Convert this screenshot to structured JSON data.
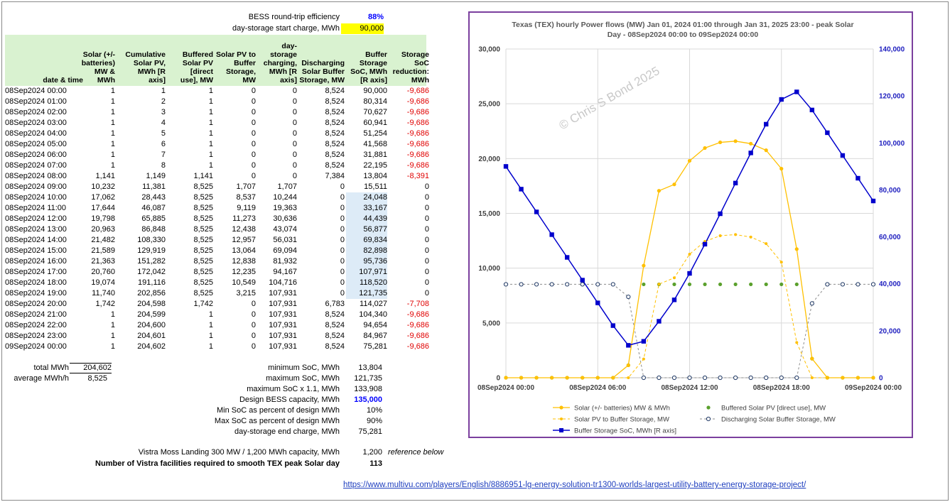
{
  "params": {
    "eff_label": "BESS round-trip efficiency",
    "eff_value": "88%",
    "start_label": "day-storage start charge, MWh",
    "start_value": "90,000"
  },
  "headers": [
    "date & time",
    "Solar (+/- batteries) MW & MWh",
    "Cumulative Solar PV, MWh [R axis]",
    "Buffered Solar PV [direct use], MW",
    "Solar PV to Buffer Storage, MW",
    "day-storage charging, MWh [R axis]",
    "Discharging Solar Buffer Storage, MW",
    "Buffer Storage SoC, MWh [R axis]",
    "Storage SoC reduction: MWh"
  ],
  "rows": [
    [
      "08Sep2024 00:00",
      "1",
      "1",
      "1",
      "0",
      "0",
      "8,524",
      "90,000",
      "-9,686"
    ],
    [
      "08Sep2024 01:00",
      "1",
      "2",
      "1",
      "0",
      "0",
      "8,524",
      "80,314",
      "-9,686"
    ],
    [
      "08Sep2024 02:00",
      "1",
      "3",
      "1",
      "0",
      "0",
      "8,524",
      "70,627",
      "-9,686"
    ],
    [
      "08Sep2024 03:00",
      "1",
      "4",
      "1",
      "0",
      "0",
      "8,524",
      "60,941",
      "-9,686"
    ],
    [
      "08Sep2024 04:00",
      "1",
      "5",
      "1",
      "0",
      "0",
      "8,524",
      "51,254",
      "-9,686"
    ],
    [
      "08Sep2024 05:00",
      "1",
      "6",
      "1",
      "0",
      "0",
      "8,524",
      "41,568",
      "-9,686"
    ],
    [
      "08Sep2024 06:00",
      "1",
      "7",
      "1",
      "0",
      "0",
      "8,524",
      "31,881",
      "-9,686"
    ],
    [
      "08Sep2024 07:00",
      "1",
      "8",
      "1",
      "0",
      "0",
      "8,524",
      "22,195",
      "-9,686"
    ],
    [
      "08Sep2024 08:00",
      "1,141",
      "1,149",
      "1,141",
      "0",
      "0",
      "7,384",
      "13,804",
      "-8,391"
    ],
    [
      "08Sep2024 09:00",
      "10,232",
      "11,381",
      "8,525",
      "1,707",
      "1,707",
      "0",
      "15,511",
      "0"
    ],
    [
      "08Sep2024 10:00",
      "17,062",
      "28,443",
      "8,525",
      "8,537",
      "10,244",
      "0",
      "24,048",
      "0"
    ],
    [
      "08Sep2024 11:00",
      "17,644",
      "46,087",
      "8,525",
      "9,119",
      "19,363",
      "0",
      "33,167",
      "0"
    ],
    [
      "08Sep2024 12:00",
      "19,798",
      "65,885",
      "8,525",
      "11,273",
      "30,636",
      "0",
      "44,439",
      "0"
    ],
    [
      "08Sep2024 13:00",
      "20,963",
      "86,848",
      "8,525",
      "12,438",
      "43,074",
      "0",
      "56,877",
      "0"
    ],
    [
      "08Sep2024 14:00",
      "21,482",
      "108,330",
      "8,525",
      "12,957",
      "56,031",
      "0",
      "69,834",
      "0"
    ],
    [
      "08Sep2024 15:00",
      "21,589",
      "129,919",
      "8,525",
      "13,064",
      "69,094",
      "0",
      "82,898",
      "0"
    ],
    [
      "08Sep2024 16:00",
      "21,363",
      "151,282",
      "8,525",
      "12,838",
      "81,932",
      "0",
      "95,736",
      "0"
    ],
    [
      "08Sep2024 17:00",
      "20,760",
      "172,042",
      "8,525",
      "12,235",
      "94,167",
      "0",
      "107,971",
      "0"
    ],
    [
      "08Sep2024 18:00",
      "19,074",
      "191,116",
      "8,525",
      "10,549",
      "104,716",
      "0",
      "118,520",
      "0"
    ],
    [
      "08Sep2024 19:00",
      "11,740",
      "202,856",
      "8,525",
      "3,215",
      "107,931",
      "0",
      "121,735",
      "0"
    ],
    [
      "08Sep2024 20:00",
      "1,742",
      "204,598",
      "1,742",
      "0",
      "107,931",
      "6,783",
      "114,027",
      "-7,708"
    ],
    [
      "08Sep2024 21:00",
      "1",
      "204,599",
      "1",
      "0",
      "107,931",
      "8,524",
      "104,340",
      "-9,686"
    ],
    [
      "08Sep2024 22:00",
      "1",
      "204,600",
      "1",
      "0",
      "107,931",
      "8,524",
      "94,654",
      "-9,686"
    ],
    [
      "08Sep2024 23:00",
      "1",
      "204,601",
      "1",
      "0",
      "107,931",
      "8,524",
      "84,967",
      "-9,686"
    ],
    [
      "09Sep2024 00:00",
      "1",
      "204,602",
      "1",
      "0",
      "107,931",
      "8,524",
      "75,281",
      "-9,686"
    ]
  ],
  "totals": {
    "total_label": "total MWh",
    "total_value": "204,602",
    "avg_label": "average MWh/h",
    "avg_value": "8,525"
  },
  "stats": [
    {
      "label": "minimum SoC, MWh",
      "value": "13,804"
    },
    {
      "label": "maximum SoC, MWh",
      "value": "121,735"
    },
    {
      "label": "maximum SoC x 1.1, MWh",
      "value": "133,908"
    },
    {
      "label": "Design BESS capacity, MWh",
      "value": "135,000"
    },
    {
      "label": "Min SoC as percent of design MWh",
      "value": "10%"
    },
    {
      "label": "Max SoC as percent of design MWh",
      "value": "90%"
    },
    {
      "label": "day-storage end charge, MWh",
      "value": "75,281"
    }
  ],
  "vistra": {
    "label": "Vistra Moss Landing 300 MW / 1,200 MWh capacity, MWh",
    "value": "1,200",
    "note": "reference below",
    "count_label": "Number of Vistra facilities required to smooth TEX peak Solar day",
    "count_value": "113"
  },
  "link": "https://www.multivu.com/players/English/8886951-lg-energy-solution-tr1300-worlds-largest-utility-battery-energy-storage-project/",
  "colors": {
    "header_bg": "#d9f2d0",
    "highlight": "#ffff00",
    "soc_highlight": "#ddebf7",
    "negative": "#e00000",
    "chart_border": "#7b3f9e",
    "solar": "#ffc000",
    "buffered": "#5aa02c",
    "soc": "#0000cc",
    "discharge": "#1f3864"
  },
  "chart_data": {
    "type": "line",
    "title": "Texas (TEX) hourly Power flows (MW) Jan 01, 2024 01:00 through Jan 31, 2025 23:00 - peak Solar Day - 08Sep2024 00:00 to 09Sep2024 00:00",
    "watermark": "© Chris S Bond  2025",
    "x": [
      0,
      1,
      2,
      3,
      4,
      5,
      6,
      7,
      8,
      9,
      10,
      11,
      12,
      13,
      14,
      15,
      16,
      17,
      18,
      19,
      20,
      21,
      22,
      23,
      24
    ],
    "x_tick_labels": [
      "08Sep2024 00:00",
      "08Sep2024 06:00",
      "08Sep2024 12:00",
      "08Sep2024 18:00",
      "09Sep2024 00:00"
    ],
    "x_tick_positions": [
      0,
      6,
      12,
      18,
      24
    ],
    "ylim": [
      0,
      30000
    ],
    "y_ticks": [
      "0",
      "5,000",
      "10,000",
      "15,000",
      "20,000",
      "25,000",
      "30,000"
    ],
    "y2lim": [
      0,
      140000
    ],
    "y2_ticks": [
      "0",
      "20,000",
      "40,000",
      "60,000",
      "80,000",
      "100,000",
      "120,000",
      "140,000"
    ],
    "grid": true,
    "legend_position": "bottom",
    "series": [
      {
        "name": "Solar (+/- batteries) MW & MWh",
        "axis": "left",
        "values": [
          1,
          1,
          1,
          1,
          1,
          1,
          1,
          1,
          1141,
          10232,
          17062,
          17644,
          19798,
          20963,
          21482,
          21589,
          21363,
          20760,
          19074,
          11740,
          1742,
          1,
          1,
          1,
          1
        ]
      },
      {
        "name": "Buffered Solar PV [direct use], MW",
        "axis": "left",
        "values": [
          1,
          1,
          1,
          1,
          1,
          1,
          1,
          1,
          1141,
          8525,
          8525,
          8525,
          8525,
          8525,
          8525,
          8525,
          8525,
          8525,
          8525,
          8525,
          1742,
          1,
          1,
          1,
          1
        ]
      },
      {
        "name": "Solar PV to Buffer Storage, MW",
        "axis": "left",
        "values": [
          0,
          0,
          0,
          0,
          0,
          0,
          0,
          0,
          0,
          1707,
          8537,
          9119,
          11273,
          12438,
          12957,
          13064,
          12838,
          12235,
          10549,
          3215,
          0,
          0,
          0,
          0,
          0
        ]
      },
      {
        "name": "Discharging Solar Buffer Storage, MW",
        "axis": "left",
        "values": [
          8524,
          8524,
          8524,
          8524,
          8524,
          8524,
          8524,
          8524,
          7384,
          0,
          0,
          0,
          0,
          0,
          0,
          0,
          0,
          0,
          0,
          0,
          6783,
          8524,
          8524,
          8524,
          8524
        ]
      },
      {
        "name": "Buffer Storage SoC, MWh [R axis]",
        "axis": "right",
        "values": [
          90000,
          80314,
          70627,
          60941,
          51254,
          41568,
          31881,
          22195,
          13804,
          15511,
          24048,
          33167,
          44439,
          56877,
          69834,
          82898,
          95736,
          107971,
          118520,
          121735,
          114027,
          104340,
          94654,
          84967,
          75281
        ]
      }
    ]
  }
}
